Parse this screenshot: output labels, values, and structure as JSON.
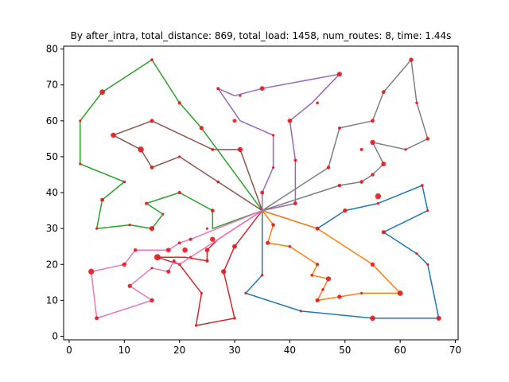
{
  "chart_data": {
    "type": "scatter",
    "title": "By after_intra, total_distance: 869, total_load: 1458, num_routes: 8, time: 1.44s",
    "xlabel": "",
    "ylabel": "",
    "xlim": [
      -1,
      70.5
    ],
    "ylim": [
      -1,
      80.8
    ],
    "xticks": [
      0,
      10,
      20,
      30,
      40,
      50,
      60,
      70
    ],
    "yticks": [
      0,
      10,
      20,
      30,
      40,
      50,
      60,
      70,
      80
    ],
    "grid": false,
    "depot": [
      35,
      35
    ],
    "series": [
      {
        "color": "#1f77b4",
        "points": [
          [
            35,
            35
          ],
          [
            45,
            30
          ],
          [
            50,
            35
          ],
          [
            56,
            37
          ],
          [
            64,
            42
          ],
          [
            65,
            35
          ],
          [
            57,
            29
          ],
          [
            63,
            23
          ],
          [
            65,
            20
          ],
          [
            67,
            5
          ],
          [
            55,
            5
          ],
          [
            42,
            7
          ],
          [
            32,
            12
          ],
          [
            35,
            17
          ],
          [
            35,
            35
          ]
        ]
      },
      {
        "color": "#ff7f0e",
        "points": [
          [
            35,
            35
          ],
          [
            37,
            31
          ],
          [
            36,
            26
          ],
          [
            40,
            25
          ],
          [
            45,
            20
          ],
          [
            44,
            17
          ],
          [
            47,
            16
          ],
          [
            46,
            13
          ],
          [
            45,
            10
          ],
          [
            49,
            11
          ],
          [
            53,
            12
          ],
          [
            60,
            12
          ],
          [
            55,
            20
          ],
          [
            45,
            30
          ],
          [
            35,
            35
          ]
        ]
      },
      {
        "color": "#2ca02c",
        "points": [
          [
            35,
            35
          ],
          [
            26,
            30
          ],
          [
            26,
            35
          ],
          [
            20,
            40
          ],
          [
            14,
            37
          ],
          [
            17,
            34
          ],
          [
            15,
            30
          ],
          [
            11,
            31
          ],
          [
            5,
            30
          ],
          [
            6,
            38
          ],
          [
            10,
            43
          ],
          [
            2,
            48
          ],
          [
            2,
            60
          ],
          [
            6,
            68
          ],
          [
            15,
            77
          ],
          [
            20,
            65
          ],
          [
            24,
            58
          ],
          [
            35,
            35
          ]
        ]
      },
      {
        "color": "#d62728",
        "points": [
          [
            35,
            35
          ],
          [
            27,
            27
          ],
          [
            25,
            24
          ],
          [
            25,
            21
          ],
          [
            21,
            22
          ],
          [
            16,
            22
          ],
          [
            20,
            20
          ],
          [
            24,
            12
          ],
          [
            23,
            3
          ],
          [
            30,
            5
          ],
          [
            28,
            18
          ],
          [
            30,
            25
          ],
          [
            35,
            35
          ]
        ]
      },
      {
        "color": "#9467bd",
        "points": [
          [
            35,
            35
          ],
          [
            41,
            37
          ],
          [
            41,
            49
          ],
          [
            40,
            60
          ],
          [
            44,
            65
          ],
          [
            49,
            73
          ],
          [
            35,
            69
          ],
          [
            30,
            67
          ],
          [
            27,
            69
          ],
          [
            31,
            60
          ],
          [
            37,
            56
          ],
          [
            37,
            47
          ],
          [
            35,
            40
          ],
          [
            35,
            35
          ]
        ]
      },
      {
        "color": "#8c564b",
        "points": [
          [
            35,
            35
          ],
          [
            27,
            43
          ],
          [
            20,
            50
          ],
          [
            15,
            47
          ],
          [
            13,
            52
          ],
          [
            8,
            56
          ],
          [
            15,
            60
          ],
          [
            26,
            52
          ],
          [
            31,
            52
          ],
          [
            35,
            35
          ]
        ]
      },
      {
        "color": "#e377c2",
        "points": [
          [
            35,
            35
          ],
          [
            22,
            27
          ],
          [
            20,
            26
          ],
          [
            18,
            24
          ],
          [
            12,
            24
          ],
          [
            10,
            20
          ],
          [
            4,
            18
          ],
          [
            5,
            5
          ],
          [
            15,
            10
          ],
          [
            11,
            14
          ],
          [
            15,
            19
          ],
          [
            18,
            18
          ],
          [
            19,
            21
          ],
          [
            20,
            20
          ],
          [
            35,
            35
          ]
        ]
      },
      {
        "color": "#7f7f7f",
        "points": [
          [
            35,
            35
          ],
          [
            49,
            42
          ],
          [
            53,
            43
          ],
          [
            55,
            45
          ],
          [
            57,
            48
          ],
          [
            55,
            54
          ],
          [
            61,
            52
          ],
          [
            65,
            55
          ],
          [
            63,
            65
          ],
          [
            62,
            77
          ],
          [
            57,
            68
          ],
          [
            55,
            60
          ],
          [
            49,
            58
          ],
          [
            47,
            47
          ],
          [
            35,
            35
          ]
        ]
      }
    ],
    "customers": [
      [
        41,
        49,
        10
      ],
      [
        35,
        17,
        7
      ],
      [
        55,
        45,
        13
      ],
      [
        55,
        20,
        19
      ],
      [
        15,
        30,
        26
      ],
      [
        25,
        30,
        3
      ],
      [
        20,
        50,
        5
      ],
      [
        10,
        43,
        9
      ],
      [
        55,
        60,
        16
      ],
      [
        30,
        60,
        16
      ],
      [
        20,
        65,
        12
      ],
      [
        50,
        35,
        19
      ],
      [
        30,
        25,
        23
      ],
      [
        15,
        10,
        20
      ],
      [
        30,
        5,
        8
      ],
      [
        10,
        20,
        19
      ],
      [
        5,
        30,
        2
      ],
      [
        20,
        40,
        12
      ],
      [
        15,
        60,
        17
      ],
      [
        45,
        65,
        9
      ],
      [
        45,
        20,
        11
      ],
      [
        45,
        10,
        18
      ],
      [
        55,
        5,
        29
      ],
      [
        65,
        35,
        3
      ],
      [
        65,
        20,
        6
      ],
      [
        45,
        30,
        17
      ],
      [
        35,
        40,
        16
      ],
      [
        41,
        37,
        16
      ],
      [
        64,
        42,
        9
      ],
      [
        40,
        60,
        21
      ],
      [
        31,
        52,
        27
      ],
      [
        35,
        69,
        23
      ],
      [
        53,
        52,
        11
      ],
      [
        65,
        55,
        14
      ],
      [
        63,
        65,
        8
      ],
      [
        2,
        60,
        5
      ],
      [
        20,
        20,
        8
      ],
      [
        5,
        5,
        16
      ],
      [
        60,
        12,
        31
      ],
      [
        40,
        25,
        9
      ],
      [
        42,
        7,
        5
      ],
      [
        24,
        12,
        5
      ],
      [
        23,
        3,
        7
      ],
      [
        11,
        14,
        18
      ],
      [
        6,
        38,
        16
      ],
      [
        2,
        48,
        1
      ],
      [
        8,
        56,
        27
      ],
      [
        13,
        52,
        36
      ],
      [
        6,
        68,
        30
      ],
      [
        47,
        47,
        13
      ],
      [
        49,
        58,
        10
      ],
      [
        27,
        43,
        9
      ],
      [
        37,
        31,
        14
      ],
      [
        57,
        29,
        18
      ],
      [
        63,
        23,
        2
      ],
      [
        53,
        12,
        6
      ],
      [
        32,
        12,
        7
      ],
      [
        36,
        26,
        18
      ],
      [
        21,
        24,
        28
      ],
      [
        17,
        34,
        3
      ],
      [
        12,
        24,
        13
      ],
      [
        24,
        58,
        19
      ],
      [
        27,
        69,
        10
      ],
      [
        15,
        77,
        9
      ],
      [
        62,
        77,
        20
      ],
      [
        49,
        73,
        25
      ],
      [
        67,
        5,
        25
      ],
      [
        56,
        39,
        36
      ],
      [
        37,
        47,
        6
      ],
      [
        37,
        56,
        5
      ],
      [
        57,
        68,
        15
      ],
      [
        47,
        16,
        25
      ],
      [
        44,
        17,
        9
      ],
      [
        46,
        13,
        8
      ],
      [
        49,
        11,
        18
      ],
      [
        49,
        42,
        13
      ],
      [
        53,
        43,
        14
      ],
      [
        61,
        52,
        3
      ],
      [
        57,
        48,
        23
      ],
      [
        56,
        37,
        6
      ],
      [
        55,
        54,
        26
      ],
      [
        15,
        47,
        16
      ],
      [
        14,
        37,
        11
      ],
      [
        11,
        31,
        7
      ],
      [
        16,
        22,
        41
      ],
      [
        4,
        18,
        35
      ],
      [
        28,
        18,
        26
      ],
      [
        26,
        52,
        9
      ],
      [
        26,
        35,
        15
      ],
      [
        31,
        67,
        3
      ],
      [
        15,
        19,
        1
      ],
      [
        22,
        22,
        2
      ],
      [
        18,
        24,
        22
      ],
      [
        26,
        27,
        27
      ],
      [
        25,
        24,
        20
      ],
      [
        22,
        27,
        11
      ],
      [
        25,
        21,
        12
      ],
      [
        19,
        21,
        10
      ],
      [
        20,
        26,
        9
      ],
      [
        18,
        18,
        17
      ]
    ]
  }
}
